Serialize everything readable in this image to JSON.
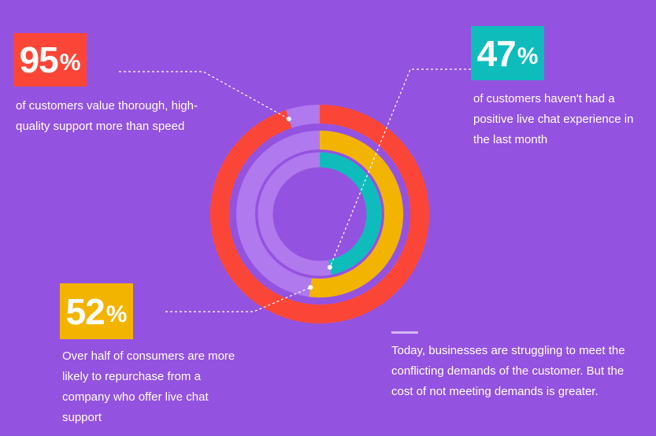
{
  "colors": {
    "background": "#9452e0",
    "red": "#fb4637",
    "teal": "#0fbcbc",
    "yellow": "#f3b400",
    "track": "#b079ee",
    "leader": "#ffffff"
  },
  "stats": [
    {
      "id": "s95",
      "value": "95",
      "unit": "%",
      "color": "#fb4637",
      "text": "of customers value thorough, high-quality support more than speed"
    },
    {
      "id": "s47",
      "value": "47",
      "unit": "%",
      "color": "#0fbcbc",
      "text": "of customers haven't had a positive live chat experience in the last month"
    },
    {
      "id": "s52",
      "value": "52",
      "unit": "%",
      "color": "#f3b400",
      "text": "Over half of consumers are more likely to repurchase from a company who offer live chat support"
    }
  ],
  "footer_text": "Today, businesses are struggling to meet the conflicting demands of the customer. But the cost of not meeting demands is greater.",
  "chart_data": {
    "type": "radial-bar",
    "unit": "%",
    "max": 100,
    "rings": [
      {
        "ring": "outer",
        "value": 95,
        "color": "#fb4637"
      },
      {
        "ring": "middle",
        "value": 52,
        "color": "#f3b400"
      },
      {
        "ring": "inner",
        "value": 47,
        "color": "#0fbcbc"
      }
    ]
  }
}
